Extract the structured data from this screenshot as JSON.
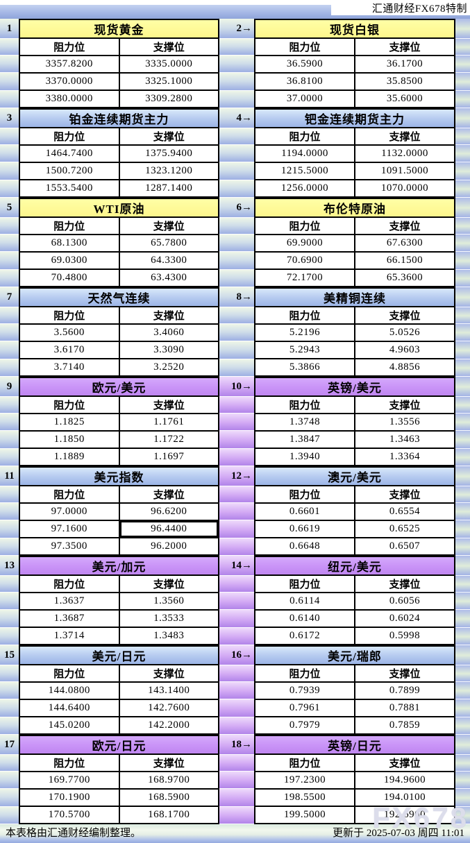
{
  "header": {
    "brand": "汇通财经FX678特制"
  },
  "columns": {
    "resistance": "阻力位",
    "support": "支撑位"
  },
  "colors": {
    "yellow": "#FFFF99",
    "blue": "#A9C6EF",
    "purple": "#CC99FF",
    "margin_blue": "#9DAFE3",
    "border": "#000000"
  },
  "sections": [
    {
      "label": "1",
      "title": "现货黄金",
      "theme": "yellow",
      "rows": [
        [
          "3357.8200",
          "3335.0000"
        ],
        [
          "3370.0000",
          "3325.1000"
        ],
        [
          "3380.0000",
          "3309.2800"
        ]
      ]
    },
    {
      "label": "2→",
      "title": "现货白银",
      "theme": "yellow",
      "rows": [
        [
          "36.5900",
          "36.1700"
        ],
        [
          "36.8100",
          "35.8500"
        ],
        [
          "37.0000",
          "35.6000"
        ]
      ]
    },
    {
      "label": "3",
      "title": "铂金连续期货主力",
      "theme": "blue",
      "rows": [
        [
          "1464.7400",
          "1375.9400"
        ],
        [
          "1500.7200",
          "1323.1200"
        ],
        [
          "1553.5400",
          "1287.1400"
        ]
      ]
    },
    {
      "label": "4→",
      "title": "钯金连续期货主力",
      "theme": "blue",
      "rows": [
        [
          "1194.0000",
          "1132.0000"
        ],
        [
          "1215.5000",
          "1091.5000"
        ],
        [
          "1256.0000",
          "1070.0000"
        ]
      ]
    },
    {
      "label": "5",
      "title": "WTI原油",
      "theme": "yellow",
      "rows": [
        [
          "68.1300",
          "65.7800"
        ],
        [
          "69.0300",
          "64.3300"
        ],
        [
          "70.4800",
          "63.4300"
        ]
      ]
    },
    {
      "label": "6→",
      "title": "布伦特原油",
      "theme": "yellow",
      "rows": [
        [
          "69.9000",
          "67.6300"
        ],
        [
          "70.6900",
          "66.1500"
        ],
        [
          "72.1700",
          "65.3600"
        ]
      ]
    },
    {
      "label": "7",
      "title": "天然气连续",
      "theme": "blue",
      "rows": [
        [
          "3.5600",
          "3.4060"
        ],
        [
          "3.6170",
          "3.3090"
        ],
        [
          "3.7140",
          "3.2520"
        ]
      ]
    },
    {
      "label": "8→",
      "title": "美精铜连续",
      "theme": "blue",
      "rows": [
        [
          "5.2196",
          "5.0526"
        ],
        [
          "5.2943",
          "4.9603"
        ],
        [
          "5.3866",
          "4.8856"
        ]
      ]
    },
    {
      "label": "9",
      "title": "欧元/美元",
      "theme": "purple",
      "rows": [
        [
          "1.1825",
          "1.1761"
        ],
        [
          "1.1850",
          "1.1722"
        ],
        [
          "1.1889",
          "1.1697"
        ]
      ]
    },
    {
      "label": "10→",
      "title": "英镑/美元",
      "theme": "purple",
      "rows": [
        [
          "1.3748",
          "1.3556"
        ],
        [
          "1.3847",
          "1.3463"
        ],
        [
          "1.3940",
          "1.3364"
        ]
      ]
    },
    {
      "label": "11",
      "title": "美元指数",
      "theme": "blue",
      "rows": [
        [
          "97.0000",
          "96.6200"
        ],
        [
          "97.1600",
          "96.4400"
        ],
        [
          "97.3500",
          "96.2000"
        ]
      ],
      "selected": {
        "row": 1,
        "col": 1
      }
    },
    {
      "label": "12→",
      "title": "澳元/美元",
      "theme": "blue",
      "rows": [
        [
          "0.6601",
          "0.6554"
        ],
        [
          "0.6619",
          "0.6525"
        ],
        [
          "0.6648",
          "0.6507"
        ]
      ]
    },
    {
      "label": "13",
      "title": "美元/加元",
      "theme": "purple",
      "rows": [
        [
          "1.3637",
          "1.3560"
        ],
        [
          "1.3687",
          "1.3533"
        ],
        [
          "1.3714",
          "1.3483"
        ]
      ]
    },
    {
      "label": "14→",
      "title": "纽元/美元",
      "theme": "purple",
      "rows": [
        [
          "0.6114",
          "0.6056"
        ],
        [
          "0.6140",
          "0.6024"
        ],
        [
          "0.6172",
          "0.5998"
        ]
      ]
    },
    {
      "label": "15",
      "title": "美元/日元",
      "theme": "blue",
      "rows": [
        [
          "144.0800",
          "143.1400"
        ],
        [
          "144.6400",
          "142.7600"
        ],
        [
          "145.0200",
          "142.2000"
        ]
      ]
    },
    {
      "label": "16→",
      "title": "美元/瑞郎",
      "theme": "blue",
      "rows": [
        [
          "0.7939",
          "0.7899"
        ],
        [
          "0.7961",
          "0.7881"
        ],
        [
          "0.7979",
          "0.7859"
        ]
      ]
    },
    {
      "label": "17",
      "title": "欧元/日元",
      "theme": "purple",
      "rows": [
        [
          "169.7700",
          "168.9700"
        ],
        [
          "170.1900",
          "168.5900"
        ],
        [
          "170.5700",
          "168.1700"
        ]
      ]
    },
    {
      "label": "18→",
      "title": "英镑/日元",
      "theme": "purple",
      "rows": [
        [
          "197.2300",
          "194.9600"
        ],
        [
          "198.5500",
          "194.0100"
        ],
        [
          "199.5000",
          "192.6900"
        ]
      ]
    }
  ],
  "footer": {
    "left": "本表格由汇通财经编制整理。",
    "right": "更新于 2025-07-03 周四 11:01"
  },
  "watermark": "FX678"
}
